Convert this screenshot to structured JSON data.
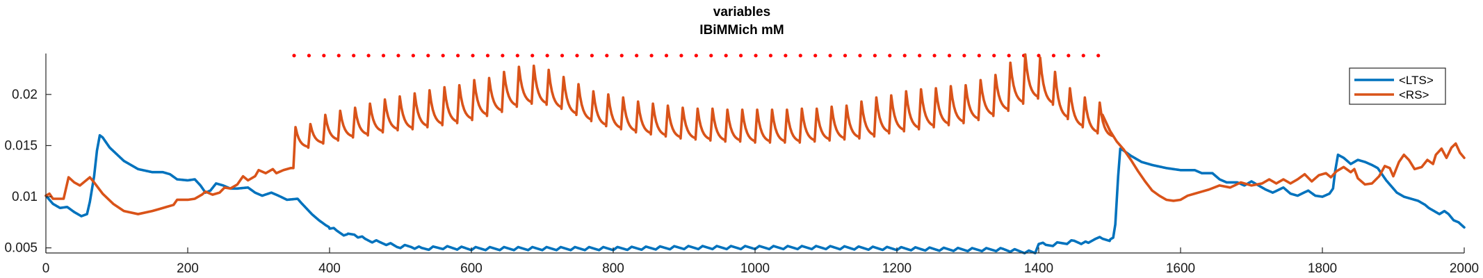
{
  "chart_data": {
    "type": "line",
    "title": "variables",
    "subtitle": "IBiMMich mM",
    "xlabel": "",
    "ylabel": "",
    "xlim": [
      0,
      2000
    ],
    "ylim": [
      0.0045,
      0.024
    ],
    "x_ticks": [
      0,
      200,
      400,
      600,
      800,
      1000,
      1200,
      1400,
      1600,
      1800,
      2000
    ],
    "x_tick_labels": [
      "0",
      "200",
      "400",
      "600",
      "800",
      "1000",
      "1200",
      "1400",
      "1600",
      "1800",
      "2000"
    ],
    "y_ticks": [
      0.005,
      0.01,
      0.015,
      0.02
    ],
    "y_tick_labels": [
      "0.005",
      "0.01",
      "0.015",
      "0.02"
    ],
    "grid": false,
    "legend_position": "top-right",
    "stimulus_markers": {
      "color": "#ff0000",
      "y": 0.0238,
      "x": [
        350,
        371,
        392,
        413,
        434,
        455,
        476,
        497,
        518,
        539,
        560,
        581,
        602,
        623,
        644,
        665,
        686,
        707,
        728,
        749,
        770,
        791,
        812,
        833,
        854,
        875,
        896,
        917,
        938,
        959,
        980,
        1001,
        1022,
        1043,
        1064,
        1085,
        1106,
        1127,
        1148,
        1169,
        1190,
        1211,
        1232,
        1253,
        1274,
        1295,
        1316,
        1337,
        1358,
        1379,
        1400,
        1421,
        1442,
        1463,
        1484
      ]
    },
    "series": [
      {
        "name": "<LTS>",
        "color": "#0072bd",
        "points": [
          [
            0,
            0.0101
          ],
          [
            10,
            0.0093
          ],
          [
            20,
            0.0089
          ],
          [
            30,
            0.009
          ],
          [
            40,
            0.0085
          ],
          [
            50,
            0.0081
          ],
          [
            58,
            0.0083
          ],
          [
            62,
            0.0095
          ],
          [
            68,
            0.012
          ],
          [
            72,
            0.0145
          ],
          [
            76,
            0.016
          ],
          [
            80,
            0.0158
          ],
          [
            90,
            0.0148
          ],
          [
            110,
            0.0135
          ],
          [
            130,
            0.0127
          ],
          [
            150,
            0.0124
          ],
          [
            165,
            0.0124
          ],
          [
            175,
            0.0122
          ],
          [
            185,
            0.0117
          ],
          [
            200,
            0.0116
          ],
          [
            210,
            0.0117
          ],
          [
            218,
            0.0111
          ],
          [
            225,
            0.0104
          ],
          [
            232,
            0.0106
          ],
          [
            240,
            0.0113
          ],
          [
            250,
            0.0111
          ],
          [
            260,
            0.0108
          ],
          [
            270,
            0.0108
          ],
          [
            285,
            0.0109
          ],
          [
            295,
            0.0104
          ],
          [
            305,
            0.0101
          ],
          [
            318,
            0.0104
          ],
          [
            328,
            0.0101
          ],
          [
            340,
            0.0097
          ],
          [
            355,
            0.0098
          ],
          [
            360,
            0.0094
          ],
          [
            375,
            0.0083
          ],
          [
            385,
            0.0077
          ],
          [
            395,
            0.0072
          ],
          [
            410,
            0.0066
          ],
          [
            425,
            0.0062
          ],
          [
            435,
            0.0063
          ],
          [
            450,
            0.0058
          ],
          [
            470,
            0.0055
          ],
          [
            480,
            0.0054
          ],
          [
            495,
            0.0051
          ],
          [
            515,
            0.0051
          ],
          [
            530,
            0.0049
          ],
          [
            560,
            0.005
          ],
          [
            600,
            0.0049
          ],
          [
            700,
            0.0049
          ],
          [
            800,
            0.0049
          ],
          [
            900,
            0.005
          ],
          [
            1000,
            0.005
          ],
          [
            1100,
            0.005
          ],
          [
            1200,
            0.0049
          ],
          [
            1300,
            0.0048
          ],
          [
            1350,
            0.0048
          ],
          [
            1380,
            0.0046
          ],
          [
            1395,
            0.0045
          ],
          [
            1400,
            0.0055
          ],
          [
            1410,
            0.0052
          ],
          [
            1430,
            0.0054
          ],
          [
            1450,
            0.0056
          ],
          [
            1460,
            0.0055
          ],
          [
            1470,
            0.0054
          ],
          [
            1480,
            0.006
          ],
          [
            1490,
            0.0058
          ],
          [
            1500,
            0.0058
          ],
          [
            1505,
            0.006
          ],
          [
            1508,
            0.0073
          ],
          [
            1512,
            0.012
          ],
          [
            1515,
            0.0147
          ],
          [
            1520,
            0.0145
          ],
          [
            1530,
            0.014
          ],
          [
            1545,
            0.0134
          ],
          [
            1560,
            0.0131
          ],
          [
            1580,
            0.0128
          ],
          [
            1600,
            0.0126
          ],
          [
            1620,
            0.0126
          ],
          [
            1630,
            0.0123
          ],
          [
            1645,
            0.0123
          ],
          [
            1655,
            0.0117
          ],
          [
            1665,
            0.0114
          ],
          [
            1680,
            0.0114
          ],
          [
            1690,
            0.0111
          ],
          [
            1700,
            0.0115
          ],
          [
            1710,
            0.0111
          ],
          [
            1720,
            0.0107
          ],
          [
            1730,
            0.0104
          ],
          [
            1745,
            0.0109
          ],
          [
            1755,
            0.0103
          ],
          [
            1765,
            0.0101
          ],
          [
            1780,
            0.0106
          ],
          [
            1790,
            0.0101
          ],
          [
            1800,
            0.01
          ],
          [
            1810,
            0.0103
          ],
          [
            1815,
            0.0108
          ],
          [
            1818,
            0.0125
          ],
          [
            1822,
            0.0141
          ],
          [
            1830,
            0.0138
          ],
          [
            1840,
            0.0132
          ],
          [
            1850,
            0.0136
          ],
          [
            1860,
            0.0134
          ],
          [
            1870,
            0.0131
          ],
          [
            1878,
            0.0128
          ],
          [
            1885,
            0.0121
          ],
          [
            1890,
            0.0116
          ],
          [
            1895,
            0.0112
          ],
          [
            1905,
            0.0104
          ],
          [
            1915,
            0.01
          ],
          [
            1925,
            0.0098
          ],
          [
            1935,
            0.0096
          ],
          [
            1945,
            0.0092
          ],
          [
            1950,
            0.0089
          ],
          [
            1960,
            0.0085
          ],
          [
            1965,
            0.0083
          ],
          [
            1972,
            0.0086
          ],
          [
            1978,
            0.0083
          ],
          [
            1985,
            0.0077
          ],
          [
            1992,
            0.0075
          ],
          [
            2000,
            0.007
          ]
        ],
        "oscillation": {
          "start": 400,
          "end": 1500,
          "period": 20,
          "amplitude": 0.0003
        }
      },
      {
        "name": "<RS>",
        "color": "#d95319",
        "points": [
          [
            0,
            0.0101
          ],
          [
            5,
            0.0103
          ],
          [
            10,
            0.0098
          ],
          [
            25,
            0.0098
          ],
          [
            28,
            0.0107
          ],
          [
            32,
            0.0119
          ],
          [
            40,
            0.0114
          ],
          [
            48,
            0.0111
          ],
          [
            55,
            0.0115
          ],
          [
            62,
            0.0119
          ],
          [
            68,
            0.0114
          ],
          [
            80,
            0.0103
          ],
          [
            95,
            0.0093
          ],
          [
            110,
            0.0086
          ],
          [
            130,
            0.0083
          ],
          [
            150,
            0.0086
          ],
          [
            160,
            0.0088
          ],
          [
            170,
            0.009
          ],
          [
            180,
            0.0092
          ],
          [
            185,
            0.0097
          ],
          [
            200,
            0.0097
          ],
          [
            210,
            0.0098
          ],
          [
            220,
            0.0102
          ],
          [
            225,
            0.0105
          ],
          [
            235,
            0.0102
          ],
          [
            245,
            0.0104
          ],
          [
            252,
            0.0109
          ],
          [
            260,
            0.0108
          ],
          [
            270,
            0.0112
          ],
          [
            278,
            0.012
          ],
          [
            285,
            0.0116
          ],
          [
            295,
            0.012
          ],
          [
            300,
            0.0126
          ],
          [
            310,
            0.0123
          ],
          [
            320,
            0.0127
          ],
          [
            325,
            0.0123
          ],
          [
            335,
            0.0126
          ],
          [
            345,
            0.0128
          ]
        ],
        "pulses": {
          "start": 350,
          "end": 1484,
          "period": 21,
          "peaks": [
            0.0168,
            0.0171,
            0.018,
            0.0184,
            0.0187,
            0.0191,
            0.0195,
            0.0198,
            0.0201,
            0.0204,
            0.0207,
            0.0209,
            0.0214,
            0.0216,
            0.0222,
            0.0227,
            0.0228,
            0.0224,
            0.0217,
            0.021,
            0.0203,
            0.02,
            0.0197,
            0.0193,
            0.0191,
            0.0189,
            0.0187,
            0.0186,
            0.0186,
            0.0185,
            0.0185,
            0.0185,
            0.0185,
            0.0185,
            0.0186,
            0.0186,
            0.0188,
            0.0189,
            0.0193,
            0.0197,
            0.0199,
            0.0203,
            0.0205,
            0.0206,
            0.0208,
            0.0209,
            0.0214,
            0.0219,
            0.0231,
            0.0239,
            0.0236,
            0.0222,
            0.0206,
            0.0197,
            0.0192
          ],
          "troughs": [
            0.0148,
            0.0152,
            0.0155,
            0.0158,
            0.016,
            0.0163,
            0.0165,
            0.0166,
            0.0168,
            0.017,
            0.0172,
            0.0175,
            0.0179,
            0.0183,
            0.0188,
            0.0191,
            0.019,
            0.0186,
            0.018,
            0.0174,
            0.0169,
            0.0166,
            0.0163,
            0.0161,
            0.0159,
            0.0157,
            0.0156,
            0.0155,
            0.0154,
            0.0154,
            0.0153,
            0.0153,
            0.0153,
            0.0153,
            0.0154,
            0.0155,
            0.0156,
            0.0157,
            0.0159,
            0.0162,
            0.0164,
            0.0166,
            0.0168,
            0.017,
            0.0172,
            0.0175,
            0.0179,
            0.0184,
            0.0191,
            0.0196,
            0.019,
            0.0176,
            0.0168,
            0.0162,
            0.0158
          ]
        },
        "tail": [
          [
            1490,
            0.018
          ],
          [
            1500,
            0.0165
          ],
          [
            1510,
            0.0154
          ],
          [
            1520,
            0.0146
          ],
          [
            1530,
            0.0136
          ],
          [
            1540,
            0.0125
          ],
          [
            1550,
            0.0115
          ],
          [
            1560,
            0.0106
          ],
          [
            1570,
            0.0101
          ],
          [
            1580,
            0.0097
          ],
          [
            1590,
            0.0096
          ],
          [
            1600,
            0.0097
          ],
          [
            1610,
            0.0101
          ],
          [
            1620,
            0.0103
          ],
          [
            1630,
            0.0105
          ],
          [
            1640,
            0.0107
          ],
          [
            1655,
            0.0111
          ],
          [
            1670,
            0.0109
          ],
          [
            1685,
            0.0114
          ],
          [
            1700,
            0.0111
          ],
          [
            1715,
            0.0113
          ],
          [
            1725,
            0.0117
          ],
          [
            1735,
            0.0113
          ],
          [
            1745,
            0.0117
          ],
          [
            1755,
            0.0113
          ],
          [
            1765,
            0.0117
          ],
          [
            1775,
            0.0122
          ],
          [
            1785,
            0.0115
          ],
          [
            1795,
            0.0121
          ],
          [
            1805,
            0.0123
          ],
          [
            1812,
            0.0119
          ],
          [
            1820,
            0.0125
          ],
          [
            1830,
            0.0129
          ],
          [
            1840,
            0.0124
          ],
          [
            1845,
            0.0127
          ],
          [
            1850,
            0.0118
          ],
          [
            1860,
            0.0112
          ],
          [
            1870,
            0.0113
          ],
          [
            1880,
            0.012
          ],
          [
            1888,
            0.013
          ],
          [
            1895,
            0.0128
          ],
          [
            1900,
            0.012
          ],
          [
            1908,
            0.0134
          ],
          [
            1915,
            0.0141
          ],
          [
            1922,
            0.0136
          ],
          [
            1930,
            0.0127
          ],
          [
            1940,
            0.0129
          ],
          [
            1948,
            0.0136
          ],
          [
            1956,
            0.0132
          ],
          [
            1960,
            0.0141
          ],
          [
            1968,
            0.0147
          ],
          [
            1975,
            0.0138
          ],
          [
            1982,
            0.0148
          ],
          [
            1988,
            0.0152
          ],
          [
            1994,
            0.0143
          ],
          [
            2000,
            0.0138
          ]
        ]
      }
    ]
  }
}
